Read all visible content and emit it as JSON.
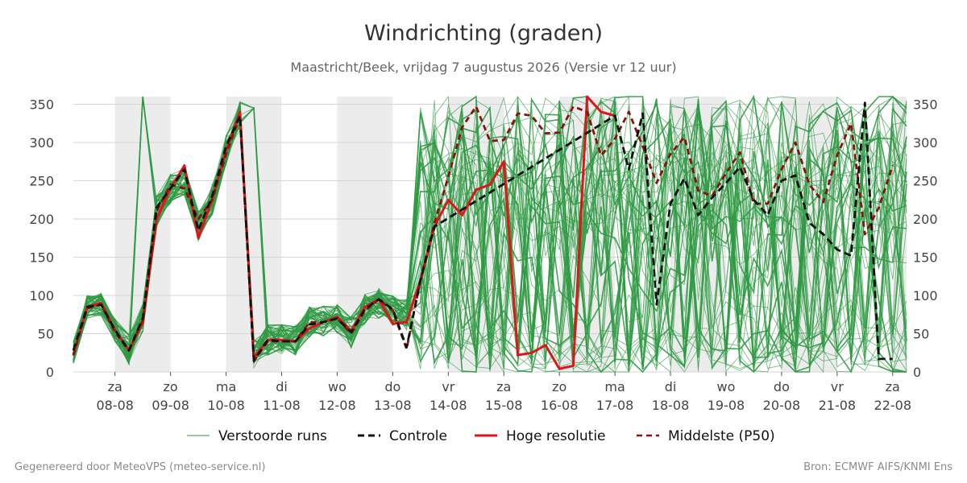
{
  "header": {
    "title": "Windrichting (graden)",
    "subtitle": "Maastricht/Beek, vrijdag  7 augustus 2026 (Versie vr 12 uur)"
  },
  "footer": {
    "left": "Gegenereerd door MeteoVPS (meteo-service.nl)",
    "right": "Bron: ECMWF AIFS/KNMI Ens"
  },
  "legend": {
    "ensemble": "Verstoorde runs",
    "control": "Controle",
    "highres": "Hoge resolutie",
    "median": "Middelste (P50)"
  },
  "chart_data": {
    "type": "line",
    "title": "Windrichting (graden)",
    "ylim": [
      0,
      360
    ],
    "yticks": [
      0,
      50,
      100,
      150,
      200,
      250,
      300,
      350
    ],
    "xlim": [
      -0.25,
      14.75
    ],
    "day_labels": [
      {
        "x": 0.5,
        "dow": "za",
        "date": "08-08"
      },
      {
        "x": 1.5,
        "dow": "zo",
        "date": "09-08"
      },
      {
        "x": 2.5,
        "dow": "ma",
        "date": "10-08"
      },
      {
        "x": 3.5,
        "dow": "di",
        "date": "11-08"
      },
      {
        "x": 4.5,
        "dow": "wo",
        "date": "12-08"
      },
      {
        "x": 5.5,
        "dow": "do",
        "date": "13-08"
      },
      {
        "x": 6.5,
        "dow": "vr",
        "date": "14-08"
      },
      {
        "x": 7.5,
        "dow": "za",
        "date": "15-08"
      },
      {
        "x": 8.5,
        "dow": "zo",
        "date": "16-08"
      },
      {
        "x": 9.5,
        "dow": "ma",
        "date": "17-08"
      },
      {
        "x": 10.5,
        "dow": "di",
        "date": "18-08"
      },
      {
        "x": 11.5,
        "dow": "wo",
        "date": "19-08"
      },
      {
        "x": 12.5,
        "dow": "do",
        "date": "20-08"
      },
      {
        "x": 13.5,
        "dow": "vr",
        "date": "21-08"
      },
      {
        "x": 14.5,
        "dow": "za",
        "date": "22-08"
      }
    ],
    "shaded_days": [
      [
        0.5,
        1.5
      ],
      [
        2.5,
        3.5
      ],
      [
        4.5,
        5.5
      ],
      [
        6.5,
        7.5
      ],
      [
        8.5,
        9.5
      ],
      [
        10.5,
        11.5
      ],
      [
        12.5,
        13.5
      ],
      [
        14.5,
        14.75
      ]
    ],
    "series": [
      {
        "name": "Hoge resolutie",
        "color": "#e0151a",
        "style": "solid",
        "points": [
          [
            -0.25,
            22
          ],
          [
            0,
            85
          ],
          [
            0.25,
            90
          ],
          [
            0.5,
            55
          ],
          [
            0.75,
            28
          ],
          [
            1,
            65
          ],
          [
            1.25,
            200
          ],
          [
            1.5,
            240
          ],
          [
            1.75,
            270
          ],
          [
            2,
            175
          ],
          [
            2.25,
            225
          ],
          [
            2.5,
            290
          ],
          [
            2.75,
            340
          ],
          [
            3,
            18
          ],
          [
            3.25,
            42
          ],
          [
            3.5,
            42
          ],
          [
            3.75,
            40
          ],
          [
            4,
            57
          ],
          [
            4.25,
            65
          ],
          [
            4.5,
            72
          ],
          [
            4.75,
            53
          ],
          [
            5,
            85
          ],
          [
            5.25,
            95
          ],
          [
            5.5,
            63
          ],
          [
            5.75,
            65
          ],
          [
            6,
            120
          ],
          [
            6.25,
            190
          ],
          [
            6.5,
            225
          ],
          [
            6.75,
            205
          ],
          [
            7,
            238
          ],
          [
            7.25,
            245
          ],
          [
            7.5,
            275
          ],
          [
            7.75,
            22
          ],
          [
            8,
            25
          ],
          [
            8.25,
            35
          ],
          [
            8.5,
            4
          ],
          [
            8.75,
            8
          ],
          [
            9,
            360
          ],
          [
            9.25,
            340
          ],
          [
            9.5,
            335
          ]
        ]
      },
      {
        "name": "Controle",
        "color": "#111111",
        "style": "dashed",
        "points": [
          [
            -0.25,
            28
          ],
          [
            0,
            85
          ],
          [
            0.25,
            88
          ],
          [
            0.5,
            55
          ],
          [
            0.75,
            28
          ],
          [
            1,
            70
          ],
          [
            1.25,
            215
          ],
          [
            1.5,
            240
          ],
          [
            1.75,
            265
          ],
          [
            2,
            185
          ],
          [
            2.25,
            230
          ],
          [
            2.5,
            295
          ],
          [
            2.75,
            335
          ],
          [
            3,
            15
          ],
          [
            3.25,
            42
          ],
          [
            3.5,
            40
          ],
          [
            3.75,
            40
          ],
          [
            4,
            62
          ],
          [
            4.25,
            65
          ],
          [
            4.5,
            70
          ],
          [
            4.75,
            52
          ],
          [
            5,
            82
          ],
          [
            5.25,
            95
          ],
          [
            5.5,
            82
          ],
          [
            5.75,
            32
          ],
          [
            6,
            120
          ],
          [
            6.25,
            190
          ],
          [
            9.5,
            335
          ],
          [
            9.75,
            265
          ],
          [
            10,
            338
          ],
          [
            10.25,
            88
          ],
          [
            10.5,
            220
          ],
          [
            10.75,
            253
          ],
          [
            11,
            205
          ],
          [
            11.25,
            228
          ],
          [
            11.5,
            247
          ],
          [
            11.75,
            268
          ],
          [
            12,
            225
          ],
          [
            12.25,
            205
          ],
          [
            12.5,
            250
          ],
          [
            12.75,
            257
          ],
          [
            13,
            195
          ],
          [
            13.25,
            180
          ],
          [
            13.5,
            160
          ],
          [
            13.75,
            152
          ],
          [
            14,
            352
          ],
          [
            14.25,
            17
          ],
          [
            14.5,
            17
          ]
        ]
      },
      {
        "name": "Middelste (P50)",
        "color": "#8b1010",
        "style": "dashed",
        "points": [
          [
            -0.25,
            22
          ],
          [
            0,
            83
          ],
          [
            0.25,
            88
          ],
          [
            0.5,
            52
          ],
          [
            0.75,
            28
          ],
          [
            1,
            68
          ],
          [
            1.25,
            210
          ],
          [
            1.5,
            245
          ],
          [
            1.75,
            240
          ],
          [
            2,
            200
          ],
          [
            2.25,
            225
          ],
          [
            2.5,
            285
          ],
          [
            2.75,
            335
          ],
          [
            3,
            14
          ],
          [
            3.25,
            40
          ],
          [
            3.5,
            40
          ],
          [
            3.75,
            40
          ],
          [
            4,
            65
          ],
          [
            4.25,
            65
          ],
          [
            4.5,
            70
          ],
          [
            4.75,
            50
          ],
          [
            5,
            80
          ],
          [
            5.25,
            95
          ],
          [
            5.5,
            80
          ],
          [
            5.75,
            30
          ],
          [
            6,
            120
          ],
          [
            6.25,
            195
          ],
          [
            6.5,
            255
          ],
          [
            6.75,
            320
          ],
          [
            7,
            347
          ],
          [
            7.25,
            302
          ],
          [
            7.5,
            303
          ],
          [
            7.75,
            338
          ],
          [
            8,
            335
          ],
          [
            8.25,
            312
          ],
          [
            8.5,
            313
          ],
          [
            8.75,
            347
          ],
          [
            9,
            340
          ],
          [
            9.25,
            283
          ],
          [
            9.5,
            305
          ],
          [
            9.75,
            340
          ],
          [
            10,
            295
          ],
          [
            10.25,
            247
          ],
          [
            10.5,
            285
          ],
          [
            10.75,
            307
          ],
          [
            11,
            237
          ],
          [
            11.25,
            230
          ],
          [
            11.5,
            260
          ],
          [
            11.75,
            287
          ],
          [
            12,
            220
          ],
          [
            12.25,
            220
          ],
          [
            12.5,
            265
          ],
          [
            12.75,
            300
          ],
          [
            13,
            245
          ],
          [
            13.25,
            222
          ],
          [
            13.5,
            283
          ],
          [
            13.75,
            325
          ],
          [
            14,
            180
          ],
          [
            14.25,
            215
          ],
          [
            14.5,
            270
          ]
        ]
      }
    ]
  }
}
